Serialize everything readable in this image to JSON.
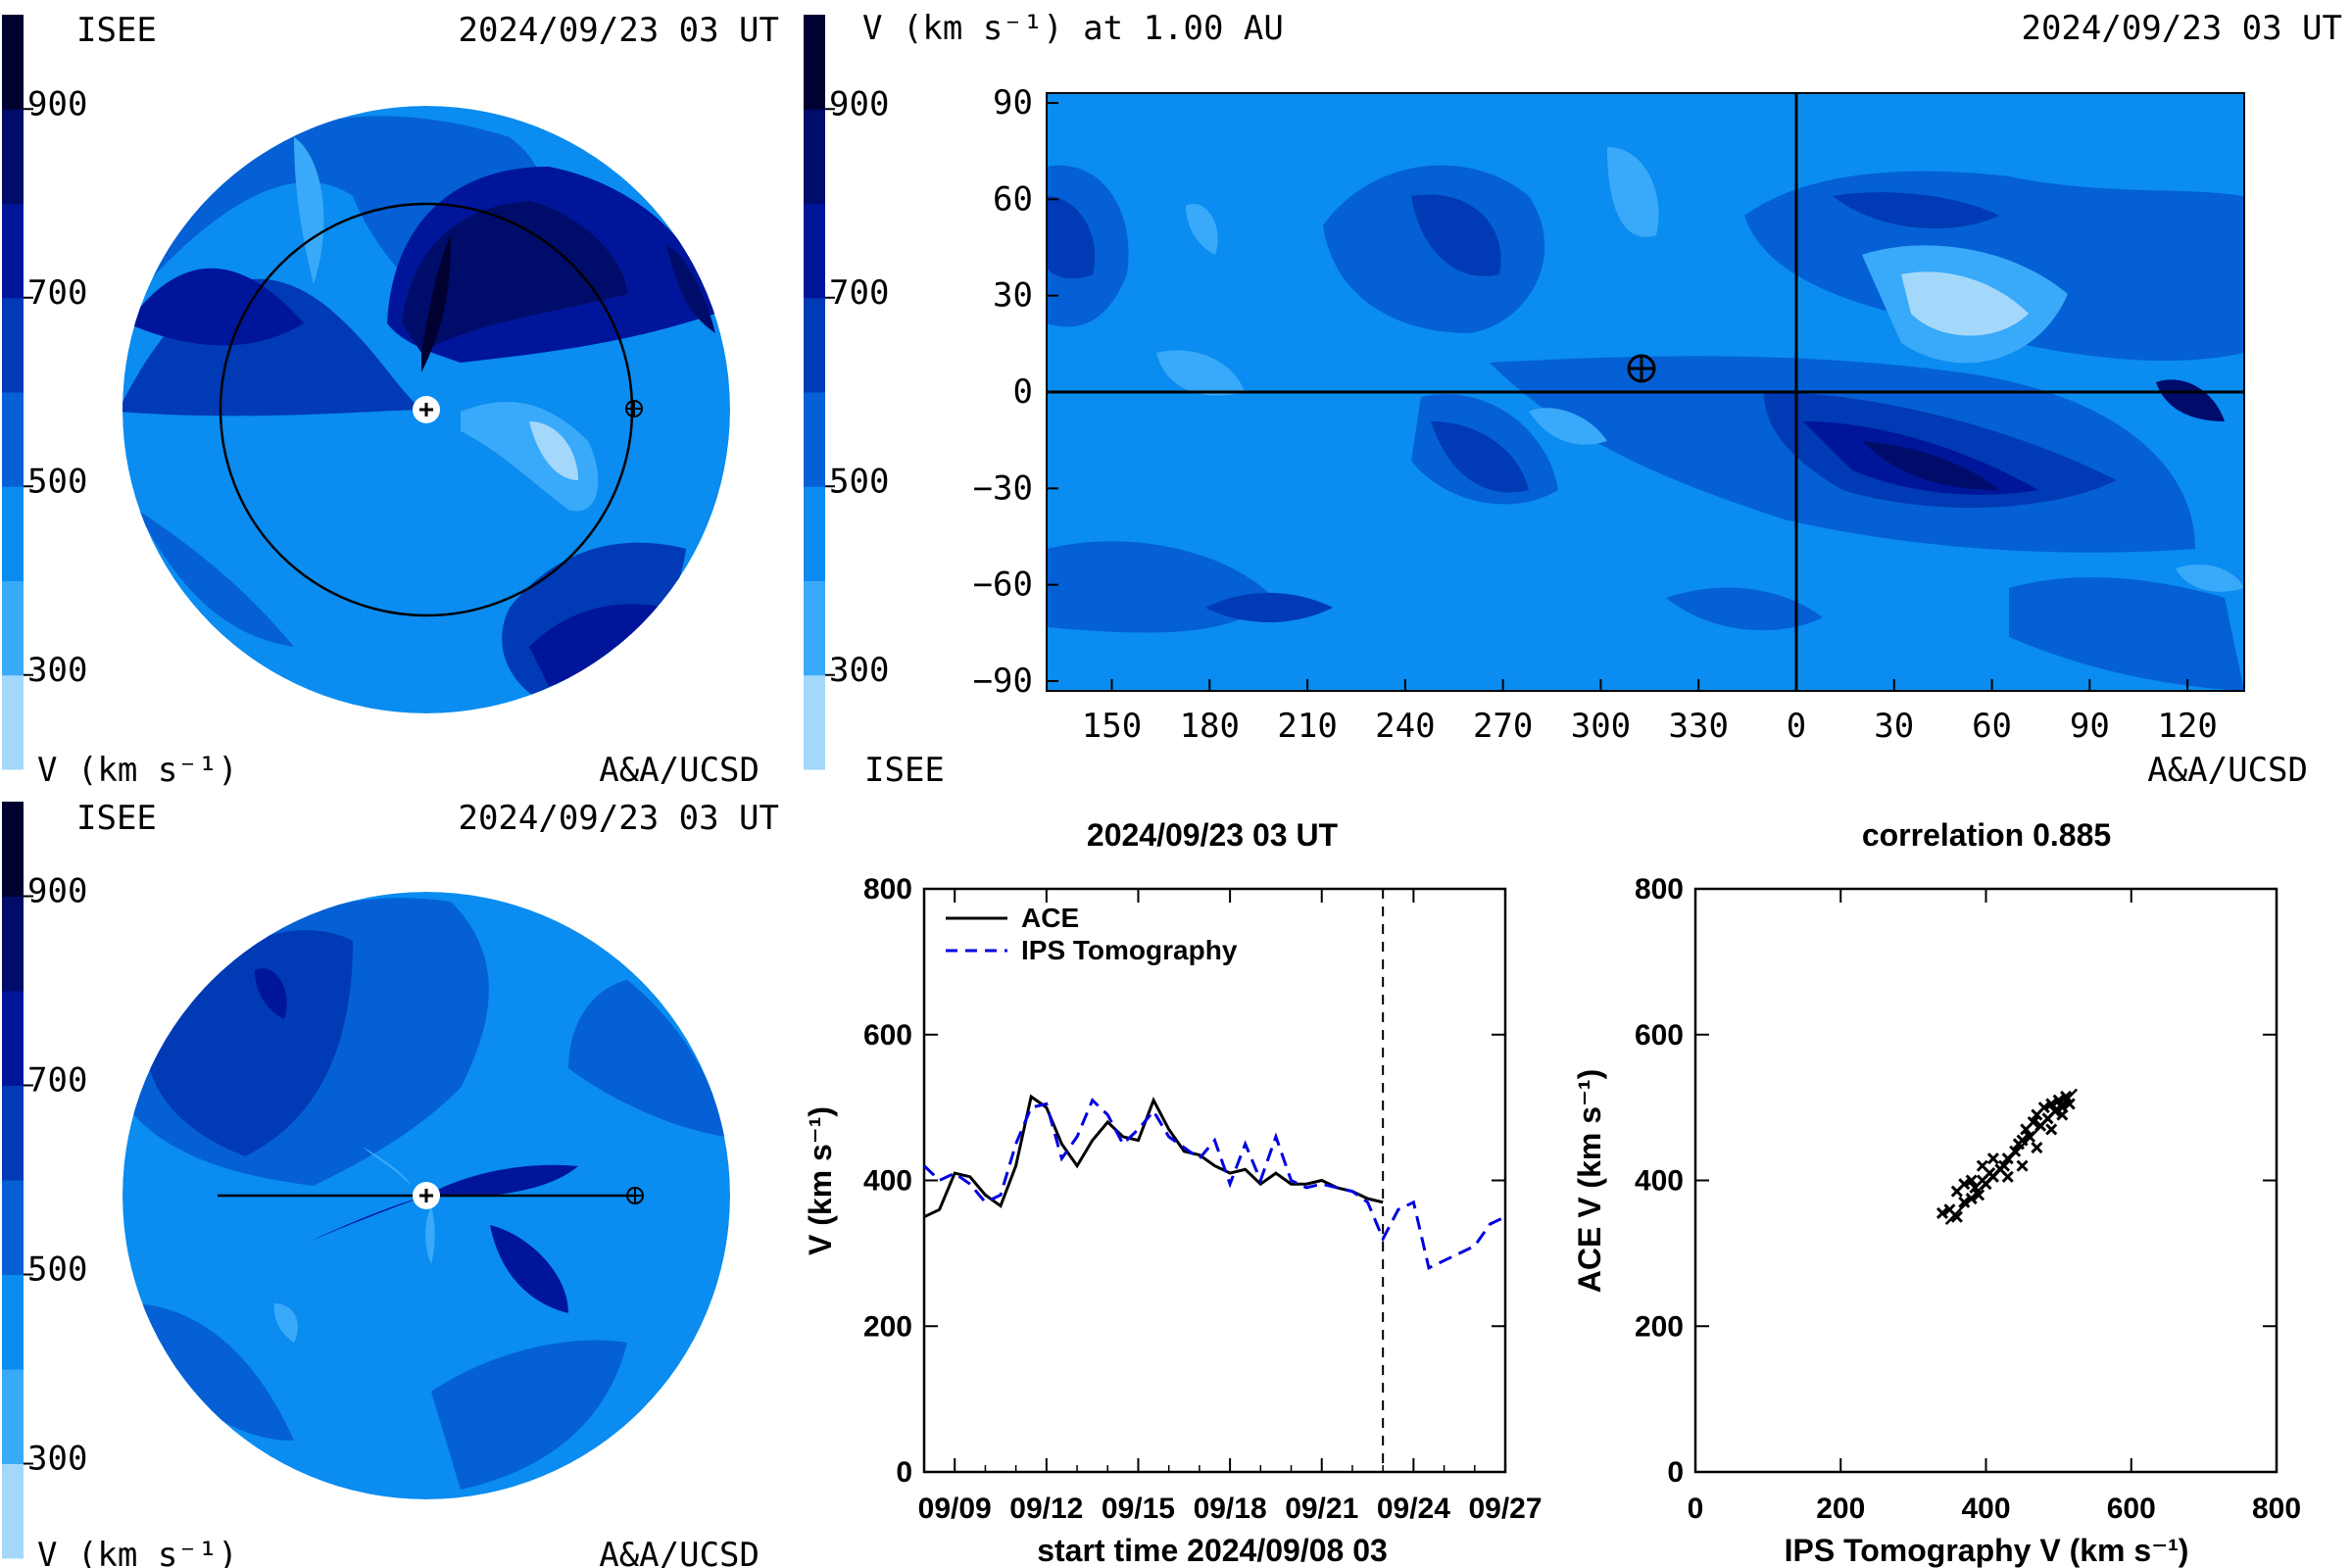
{
  "colors": {
    "bands": [
      "#a4d8fa",
      "#39a9f9",
      "#0a8cf0",
      "#0460d4",
      "#003ab4",
      "#00169a",
      "#000c6a",
      "#000031"
    ],
    "earth_mark": "#ffffff"
  },
  "panels": {
    "equatorial": {
      "header_left": "ISEE",
      "header_right": "2024/09/23 03 UT",
      "footer_left": "V (km s⁻¹)",
      "footer_right": "A&A/UCSD",
      "colorbar_ticks": [
        "900",
        "700",
        "500",
        "300"
      ]
    },
    "meridional": {
      "header_left": "ISEE",
      "header_right": "2024/09/23 03 UT",
      "footer_left": "V (km s⁻¹)",
      "footer_right": "A&A/UCSD",
      "colorbar_ticks": [
        "900",
        "700",
        "500",
        "300"
      ]
    },
    "synoptic": {
      "header_left": "V (km s⁻¹) at 1.00 AU",
      "header_right": "2024/09/23 03 UT",
      "footer_left": "ISEE",
      "footer_right": "A&A/UCSD",
      "colorbar_ticks": [
        "900",
        "700",
        "500",
        "300"
      ],
      "x_ticks": [
        "150",
        "180",
        "210",
        "240",
        "270",
        "300",
        "330",
        "0",
        "30",
        "60",
        "90",
        "120"
      ],
      "y_ticks": [
        "90",
        "60",
        "30",
        "0",
        "−30",
        "−60",
        "−90"
      ]
    }
  },
  "chart_data": [
    {
      "type": "line",
      "title": "2024/09/23 03 UT",
      "xlabel": "start time 2024/09/08 03",
      "ylabel": "V (km s⁻¹)",
      "ylim": [
        0,
        800
      ],
      "y_ticks": [
        "0",
        "200",
        "400",
        "600",
        "800"
      ],
      "x_ticks": [
        "09/09",
        "09/12",
        "09/15",
        "09/18",
        "09/21",
        "09/24",
        "09/27"
      ],
      "xlim_days": [
        0,
        19
      ],
      "current_time_day": 15.0,
      "legend": "top-left",
      "series": [
        {
          "name": "ACE",
          "color": "#000000",
          "style": "solid",
          "x": [
            0,
            0.5,
            1,
            1.5,
            2,
            2.5,
            3,
            3.5,
            4,
            4.5,
            5,
            5.5,
            6,
            6.5,
            7,
            7.5,
            8,
            8.5,
            9,
            9.5,
            10,
            10.5,
            11,
            11.5,
            12,
            12.5,
            13,
            13.5,
            14,
            14.5,
            15
          ],
          "y": [
            350,
            360,
            410,
            405,
            380,
            365,
            420,
            515,
            500,
            450,
            420,
            455,
            480,
            460,
            455,
            510,
            470,
            440,
            435,
            420,
            410,
            415,
            395,
            410,
            395,
            395,
            400,
            390,
            385,
            375,
            370
          ]
        },
        {
          "name": "IPS Tomography",
          "color": "#0000e0",
          "style": "dashed",
          "x": [
            0,
            0.5,
            1,
            1.5,
            2,
            2.5,
            3,
            3.5,
            4,
            4.5,
            5,
            5.5,
            6,
            6.5,
            7,
            7.5,
            8,
            8.5,
            9,
            9.5,
            10,
            10.5,
            11,
            11.5,
            12,
            12.5,
            13,
            13.5,
            14,
            14.5,
            15,
            15.5,
            16,
            16.5,
            17,
            17.5,
            18,
            18.5,
            19
          ],
          "y": [
            420,
            400,
            410,
            395,
            370,
            380,
            450,
            500,
            505,
            430,
            460,
            510,
            490,
            450,
            470,
            495,
            460,
            445,
            430,
            455,
            395,
            450,
            400,
            460,
            400,
            390,
            395,
            390,
            385,
            370,
            320,
            360,
            370,
            280,
            290,
            300,
            310,
            340,
            350
          ]
        }
      ]
    },
    {
      "type": "scatter",
      "title": "correlation 0.885",
      "xlabel": "IPS Tomography V (km s⁻¹)",
      "ylabel": "ACE V (km s⁻¹)",
      "xlim": [
        0,
        800
      ],
      "ylim": [
        0,
        800
      ],
      "x_ticks": [
        "0",
        "200",
        "400",
        "600",
        "800"
      ],
      "y_ticks": [
        "0",
        "200",
        "400",
        "600",
        "800"
      ],
      "points": {
        "x": [
          340,
          350,
          360,
          370,
          380,
          385,
          390,
          395,
          400,
          405,
          410,
          420,
          425,
          430,
          440,
          445,
          450,
          455,
          460,
          465,
          470,
          475,
          480,
          485,
          490,
          495,
          500,
          505,
          510,
          515,
          360,
          370,
          380,
          395,
          410,
          430,
          450,
          470,
          490,
          505
        ],
        "y": [
          355,
          360,
          350,
          370,
          375,
          390,
          380,
          400,
          395,
          410,
          405,
          415,
          420,
          430,
          440,
          450,
          455,
          470,
          460,
          480,
          490,
          475,
          500,
          485,
          505,
          495,
          510,
          500,
          515,
          505,
          385,
          395,
          400,
          420,
          430,
          405,
          420,
          445,
          470,
          490
        ]
      },
      "fit_line": {
        "x": [
          345,
          525
        ],
        "y": [
          340,
          525
        ]
      }
    }
  ]
}
